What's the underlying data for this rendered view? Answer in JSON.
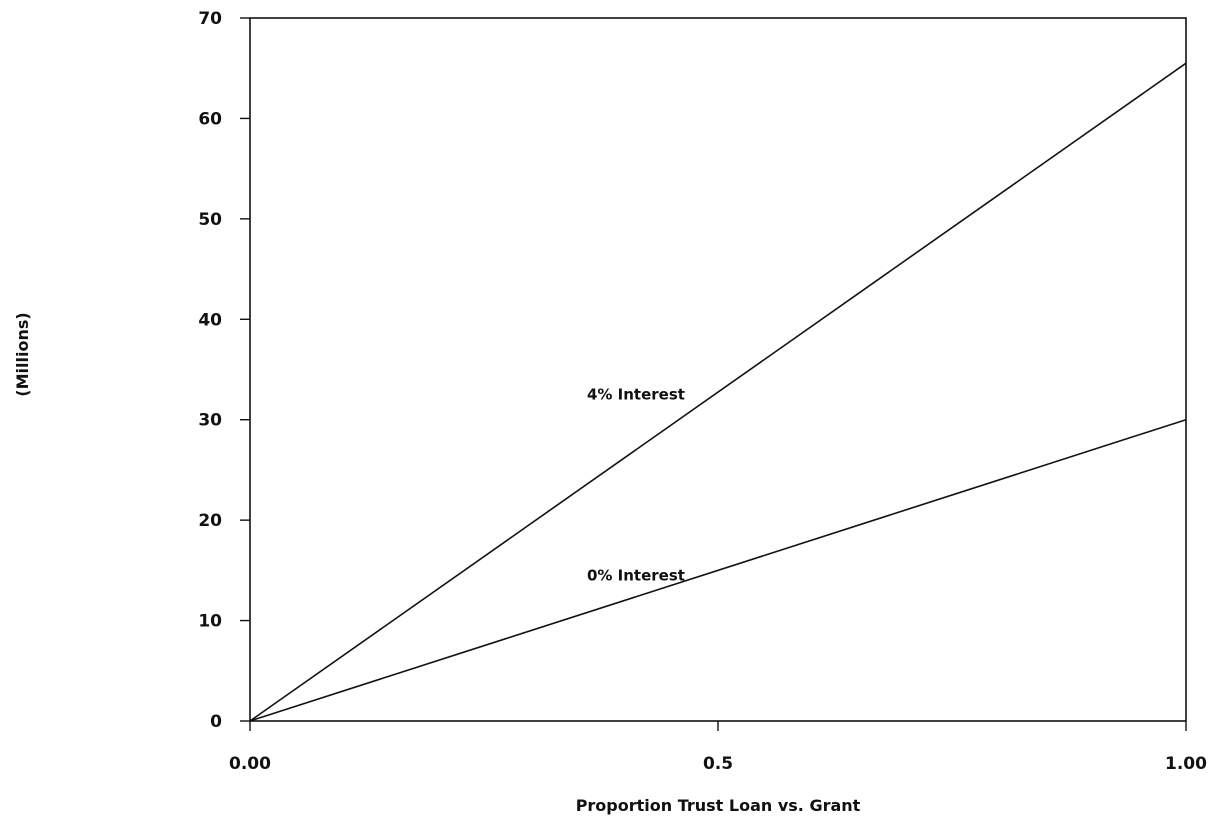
{
  "chart_data": {
    "type": "line",
    "title": "",
    "xlabel": "Proportion Trust Loan vs. Grant",
    "ylabel": "(Millions)",
    "xlim": [
      0,
      1
    ],
    "ylim": [
      0,
      70
    ],
    "x_ticks": [
      0,
      0.5,
      1
    ],
    "x_tick_labels": [
      "0.00",
      "0.5",
      "1.00"
    ],
    "y_ticks": [
      0,
      10,
      20,
      30,
      40,
      50,
      60,
      70
    ],
    "y_tick_labels": [
      "0",
      "10",
      "20",
      "30",
      "40",
      "50",
      "60",
      "70"
    ],
    "grid": false,
    "legend": "none",
    "series": [
      {
        "x": [
          0,
          1
        ],
        "values": [
          0,
          65.5
        ],
        "color": "#111111"
      },
      {
        "x": [
          0,
          1
        ],
        "values": [
          0,
          30
        ],
        "color": "#111111"
      }
    ],
    "annotations": [
      {
        "text": "4% Interest",
        "x": 0.36,
        "y": 32.5
      },
      {
        "text": "0% Interest",
        "x": 0.36,
        "y": 14.5
      }
    ]
  }
}
